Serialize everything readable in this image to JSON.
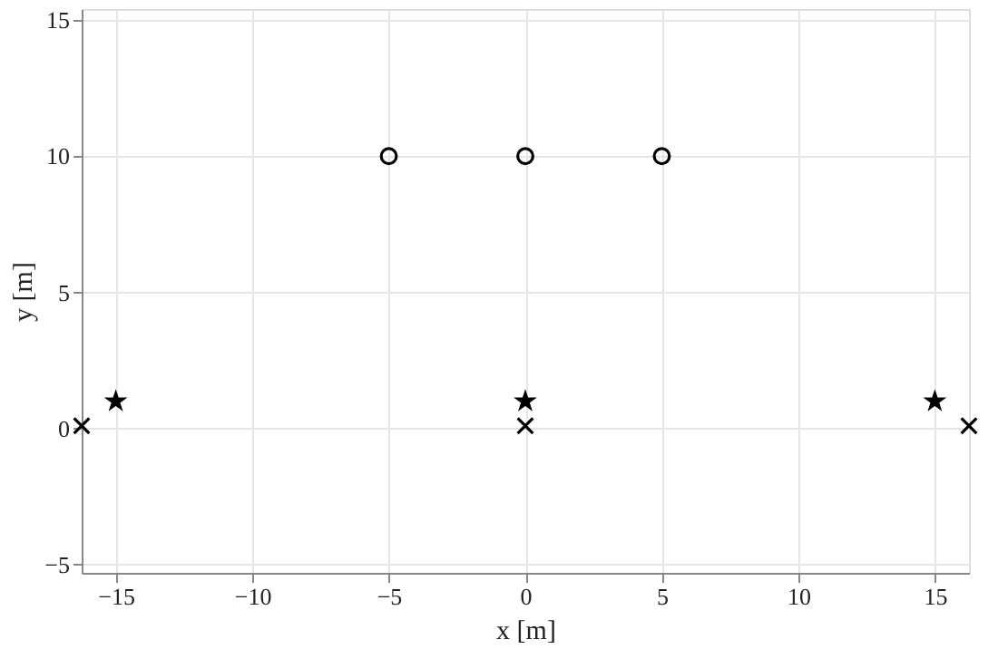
{
  "chart_data": {
    "type": "scatter",
    "xlabel": "x [m]",
    "ylabel": "y [m]",
    "xlim": [
      -16.25,
      16.25
    ],
    "ylim": [
      -5.3,
      15.4
    ],
    "xticks": [
      {
        "value": -15,
        "label": "−15"
      },
      {
        "value": -10,
        "label": "−10"
      },
      {
        "value": -5,
        "label": "−5"
      },
      0,
      5,
      10,
      15
    ],
    "yticks": [
      {
        "value": -5,
        "label": "−5"
      },
      0,
      5,
      10,
      15
    ],
    "grid": true,
    "series": [
      {
        "color": "#000000",
        "marker": "circle",
        "x": [
          -5,
          0,
          5
        ],
        "values": [
          10,
          10,
          10
        ]
      },
      {
        "color": "#000000",
        "marker": "star",
        "x": [
          -15,
          0,
          15
        ],
        "values": [
          1,
          1,
          1
        ]
      },
      {
        "color": "#000000",
        "marker": "cross",
        "x": [
          -16.25,
          0,
          16.25
        ],
        "values": [
          0.1,
          0.1,
          0.1
        ]
      }
    ]
  }
}
